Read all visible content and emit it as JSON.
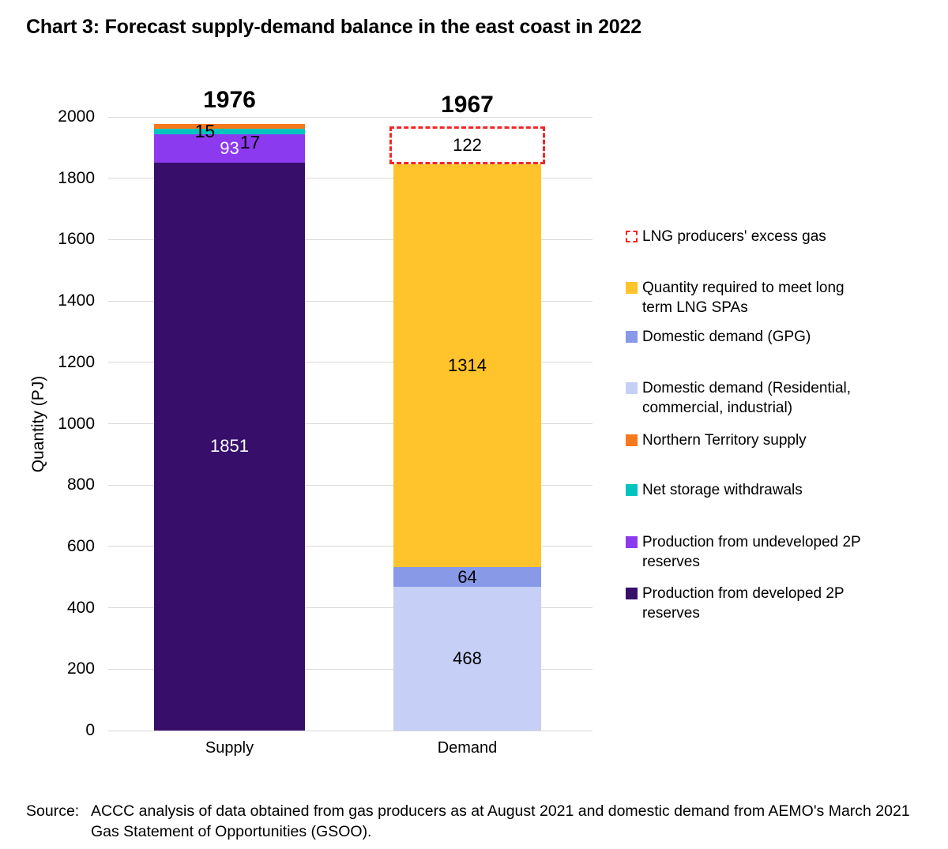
{
  "page": {
    "title": "Chart 3: Forecast supply-demand balance in the east coast in 2022"
  },
  "chart_data": {
    "type": "bar",
    "stacked": true,
    "title": "Chart 3: Forecast supply-demand balance in the east coast in 2022",
    "xlabel": "",
    "ylabel": "Quantity (PJ)",
    "ylim": [
      0,
      2000
    ],
    "yticks": [
      0,
      200,
      400,
      600,
      800,
      1000,
      1200,
      1400,
      1600,
      1800,
      2000
    ],
    "grid": "horizontal",
    "gridline_color": "#D9D9D9",
    "legend_position": "right",
    "categories": [
      "Supply",
      "Demand"
    ],
    "bars": [
      {
        "category": "Supply",
        "total": 1976,
        "total_label": "1976",
        "segments": [
          {
            "name": "Production from developed 2P reserves",
            "value": 1851,
            "label": "1851",
            "color": "#370F6B",
            "label_color": "#FFFFFF",
            "label_placement": "inside"
          },
          {
            "name": "Production from undeveloped 2P reserves",
            "value": 93,
            "label": "93",
            "color": "#8C3AF0",
            "label_color": "#FFFFFF",
            "label_placement": "inside"
          },
          {
            "name": "Net storage withdrawals",
            "value": 17,
            "label": "17",
            "color": "#00C4BE",
            "label_color": "#000000",
            "label_placement": "offset-right"
          },
          {
            "name": "Northern Territory supply",
            "value": 15,
            "label": "15",
            "color": "#F7791E",
            "label_color": "#000000",
            "label_placement": "offset-left"
          }
        ]
      },
      {
        "category": "Demand",
        "total": 1967,
        "total_label": "1967",
        "segments": [
          {
            "name": "Domestic demand (Residential, commercial, industrial)",
            "value": 468,
            "label": "468",
            "color": "#C6CFF6",
            "label_color": "#000000",
            "label_placement": "inside"
          },
          {
            "name": "Domestic demand (GPG)",
            "value": 64,
            "label": "64",
            "color": "#8899E8",
            "label_color": "#000000",
            "label_placement": "inside"
          },
          {
            "name": "Quantity required to meet long term LNG SPAs",
            "value": 1314,
            "label": "1314",
            "color": "#FFC32C",
            "label_color": "#000000",
            "label_placement": "inside"
          },
          {
            "name": "LNG producers' excess gas",
            "value": 122,
            "label": "122",
            "color": "#FFFFFF",
            "border_style": "dashed",
            "border_color": "#F42525",
            "label_color": "#000000",
            "label_placement": "inside"
          }
        ]
      }
    ],
    "legend": [
      {
        "label": "LNG producers' excess gas",
        "swatch": "dashed",
        "color": "#FFFFFF",
        "border_color": "#F42525"
      },
      {
        "label": "Quantity required to meet long term LNG SPAs",
        "swatch": "solid",
        "color": "#FFC32C"
      },
      {
        "label": "Domestic demand (GPG)",
        "swatch": "solid",
        "color": "#8899E8"
      },
      {
        "label": "Domestic demand (Residential, commercial, industrial)",
        "swatch": "solid",
        "color": "#C6CFF6"
      },
      {
        "label": "Northern Territory supply",
        "swatch": "solid",
        "color": "#F7791E"
      },
      {
        "label": "Net storage withdrawals",
        "swatch": "solid",
        "color": "#00C4BE"
      },
      {
        "label": "Production from undeveloped 2P reserves",
        "swatch": "solid",
        "color": "#8C3AF0"
      },
      {
        "label": "Production from developed 2P reserves",
        "swatch": "solid",
        "color": "#370F6B"
      }
    ]
  },
  "source": {
    "label": "Source:",
    "text": "ACCC analysis of data obtained from gas producers as at August 2021 and domestic demand from AEMO's March 2021 Gas Statement of Opportunities (GSOO)."
  }
}
